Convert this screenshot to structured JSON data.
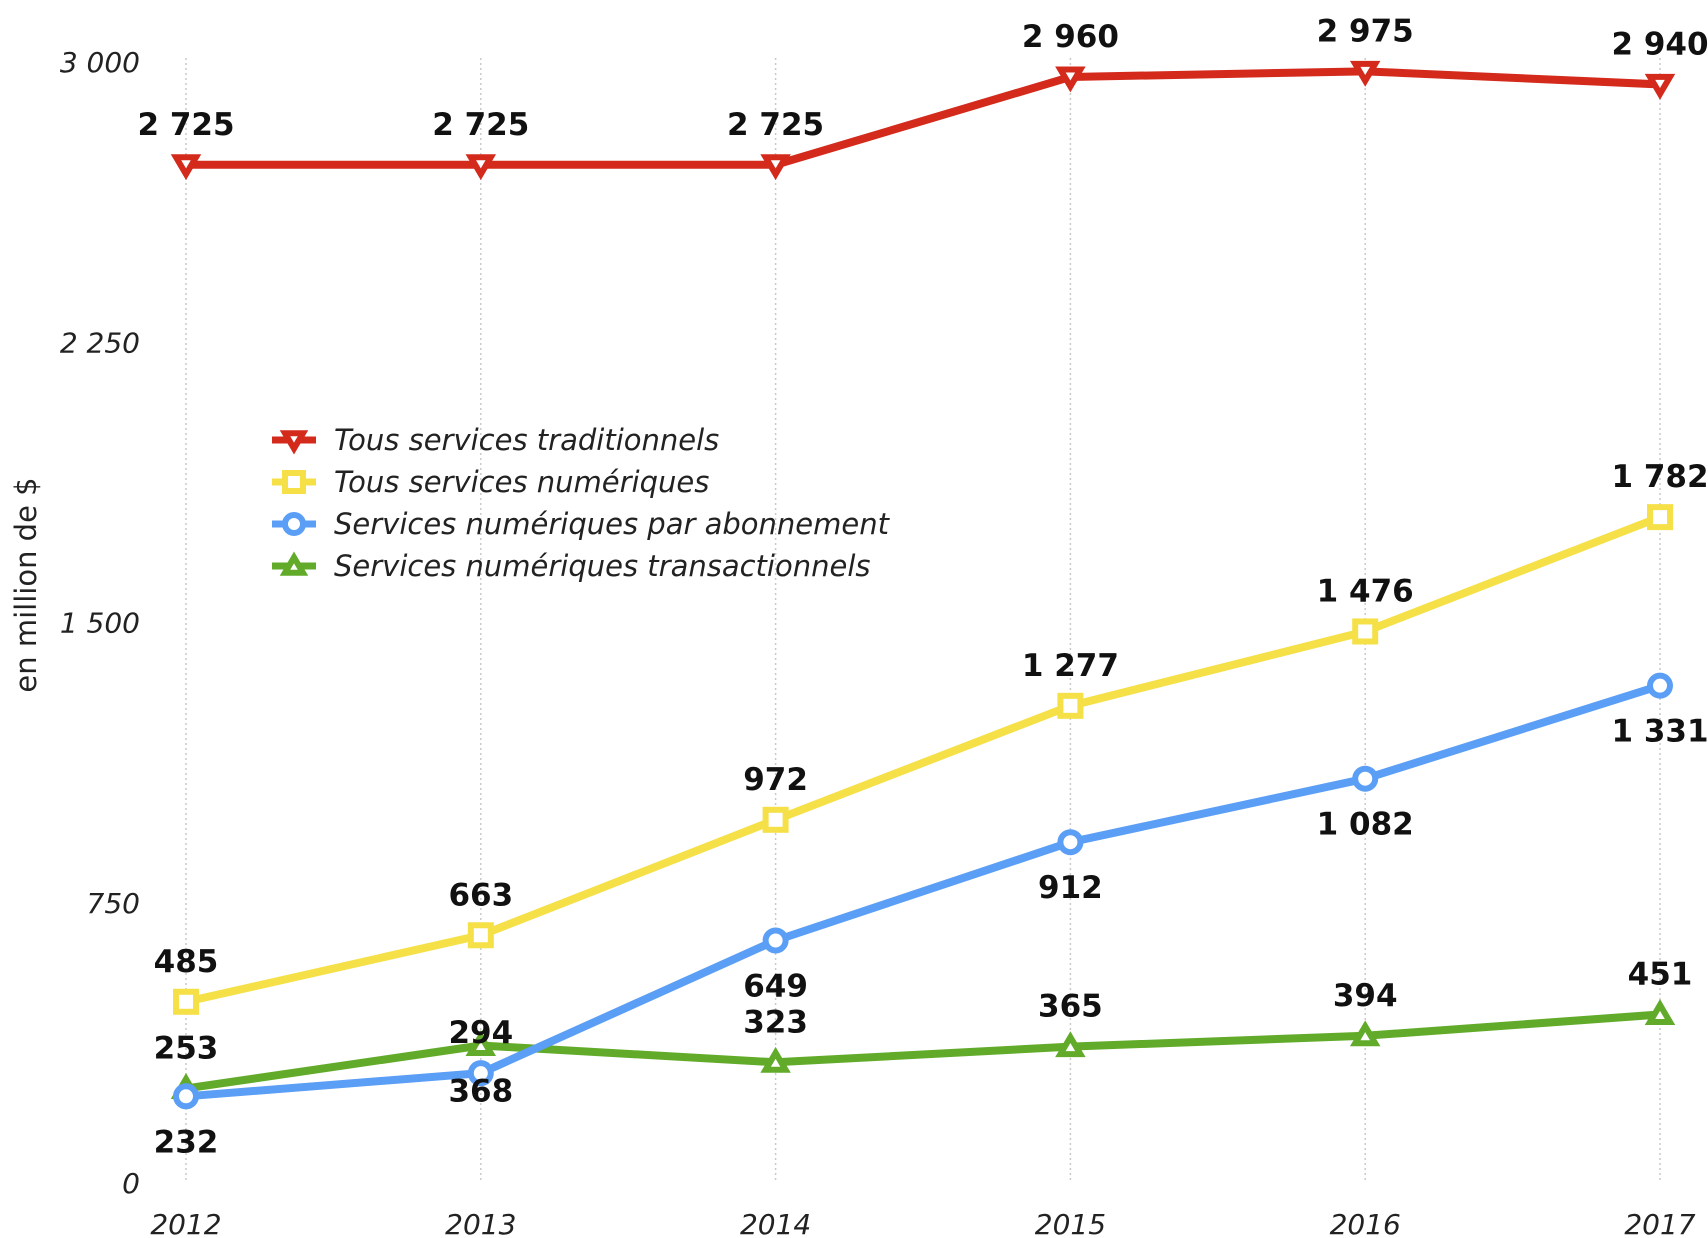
{
  "chart_data": {
    "type": "line",
    "title": "",
    "xlabel": "",
    "ylabel": "en million de $",
    "categories": [
      "2012",
      "2013",
      "2014",
      "2015",
      "2016",
      "2017"
    ],
    "ylim": [
      0,
      3000
    ],
    "yticks": [
      0,
      750,
      1500,
      2250,
      3000
    ],
    "ytick_labels": [
      "0",
      "750",
      "1 500",
      "2 250",
      "3 000"
    ],
    "grid": "vertical dotted",
    "legend_position": "center-left",
    "series": [
      {
        "name": "Tous services traditionnels",
        "color": "#d42a1c",
        "marker": "triangle-down",
        "values": [
          2725,
          2725,
          2725,
          2960,
          2975,
          2940
        ],
        "labels": [
          "2 725",
          "2 725",
          "2 725",
          "2 960",
          "2 975",
          "2 940"
        ],
        "label_side": [
          "above",
          "above",
          "above",
          "above",
          "above",
          "above"
        ]
      },
      {
        "name": "Tous services numériques",
        "color": "#f5e047",
        "marker": "square",
        "values": [
          485,
          663,
          972,
          1277,
          1476,
          1782
        ],
        "labels": [
          "485",
          "663",
          "972",
          "1 277",
          "1 476",
          "1 782"
        ],
        "label_side": [
          "above",
          "above",
          "above",
          "above",
          "above",
          "above"
        ]
      },
      {
        "name": "Services numériques par abonnement",
        "color": "#5b9ef5",
        "marker": "circle",
        "values": [
          232,
          294,
          649,
          912,
          1082,
          1331
        ],
        "labels": [
          "232",
          "294",
          "649",
          "912",
          "1 082",
          "1 331"
        ],
        "label_side": [
          "below",
          "above",
          "below",
          "below",
          "below",
          "below"
        ]
      },
      {
        "name": "Services numériques transactionnels",
        "color": "#62ab2a",
        "marker": "triangle-up",
        "values": [
          253,
          368,
          323,
          365,
          394,
          451
        ],
        "labels": [
          "253",
          "368",
          "323",
          "365",
          "394",
          "451"
        ],
        "label_side": [
          "above",
          "below",
          "above",
          "above",
          "above",
          "above"
        ]
      }
    ]
  }
}
